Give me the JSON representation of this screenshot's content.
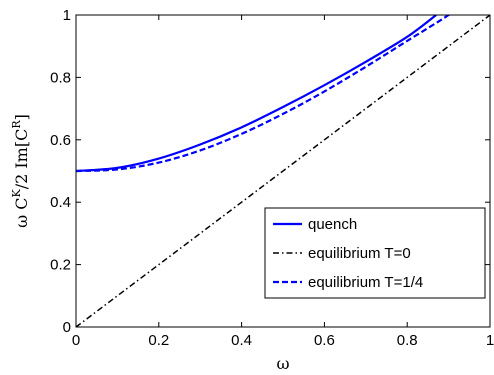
{
  "chart_data": {
    "type": "line",
    "xlabel": "ω",
    "ylabel_parts": {
      "a": "ω C",
      "b": "K",
      "c": "/2 Im[C",
      "d": "R",
      "e": "]"
    },
    "xlim": [
      0,
      1
    ],
    "ylim": [
      0,
      1
    ],
    "xticks": [
      "0",
      "0.2",
      "0.4",
      "0.6",
      "0.8",
      "1"
    ],
    "yticks": [
      "0",
      "0.2",
      "0.4",
      "0.6",
      "0.8",
      "1"
    ],
    "grid": false,
    "legend_position": "lower-right",
    "series": [
      {
        "name": "quench",
        "style": "solid",
        "color": "#0000ff",
        "x": [
          0,
          0.1,
          0.2,
          0.3,
          0.4,
          0.5,
          0.6,
          0.7,
          0.8,
          0.87
        ],
        "y": [
          0.5,
          0.51,
          0.54,
          0.585,
          0.64,
          0.705,
          0.775,
          0.85,
          0.93,
          1.0
        ]
      },
      {
        "name": "equilibrium T=0",
        "style": "dashdot",
        "color": "#000000",
        "x": [
          0,
          1
        ],
        "y": [
          0,
          1
        ]
      },
      {
        "name": "equilibrium T=1/4",
        "style": "dashed",
        "color": "#0000ff",
        "x": [
          0,
          0.1,
          0.2,
          0.3,
          0.4,
          0.5,
          0.6,
          0.7,
          0.8,
          0.9,
          0.95
        ],
        "y": [
          0.5,
          0.505,
          0.527,
          0.566,
          0.619,
          0.683,
          0.755,
          0.834,
          0.917,
          1.0,
          1.05
        ]
      }
    ]
  }
}
